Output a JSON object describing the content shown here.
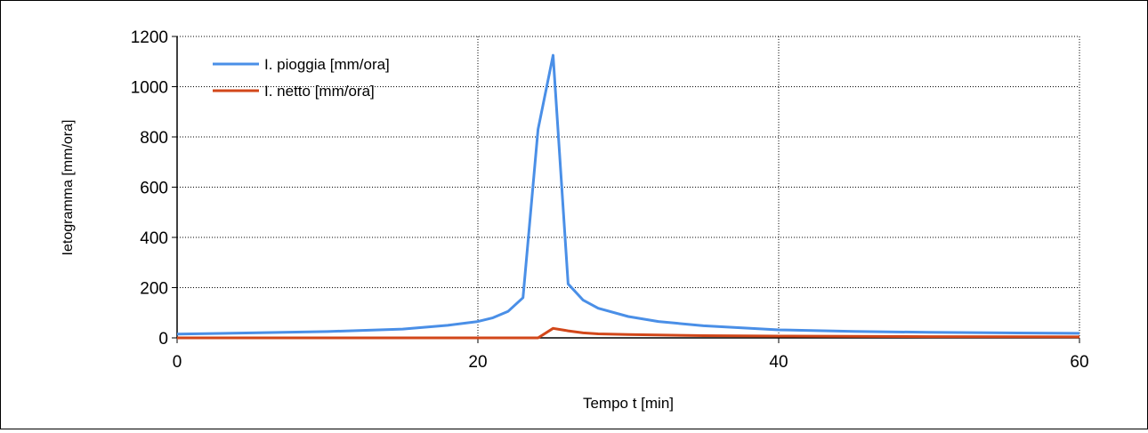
{
  "chart_data": {
    "type": "line",
    "xlabel": "Tempo t [min]",
    "ylabel": "Ietogramma [mm/ora]",
    "xlim": [
      0,
      60
    ],
    "ylim": [
      0,
      1200
    ],
    "xticks": [
      0,
      20,
      40,
      60
    ],
    "yticks": [
      0,
      200,
      400,
      600,
      800,
      1000,
      1200
    ],
    "grid": true,
    "legend_position": "top-left",
    "series": [
      {
        "name": "I. pioggia [mm/ora]",
        "color": "#4a8fe7",
        "x": [
          0,
          5,
          10,
          15,
          18,
          20,
          21,
          22,
          23,
          24,
          25,
          26,
          27,
          28,
          30,
          32,
          35,
          40,
          45,
          50,
          55,
          60
        ],
        "y": [
          15,
          20,
          25,
          35,
          50,
          65,
          80,
          105,
          160,
          830,
          1125,
          215,
          150,
          118,
          85,
          65,
          48,
          32,
          26,
          22,
          20,
          18
        ]
      },
      {
        "name": "I. netto [mm/ora]",
        "color": "#d2471a",
        "x": [
          0,
          10,
          20,
          24,
          25,
          26,
          27,
          28,
          30,
          35,
          40,
          50,
          60
        ],
        "y": [
          0,
          0,
          0,
          0,
          38,
          28,
          20,
          16,
          13,
          9,
          7,
          5,
          4
        ]
      }
    ]
  }
}
